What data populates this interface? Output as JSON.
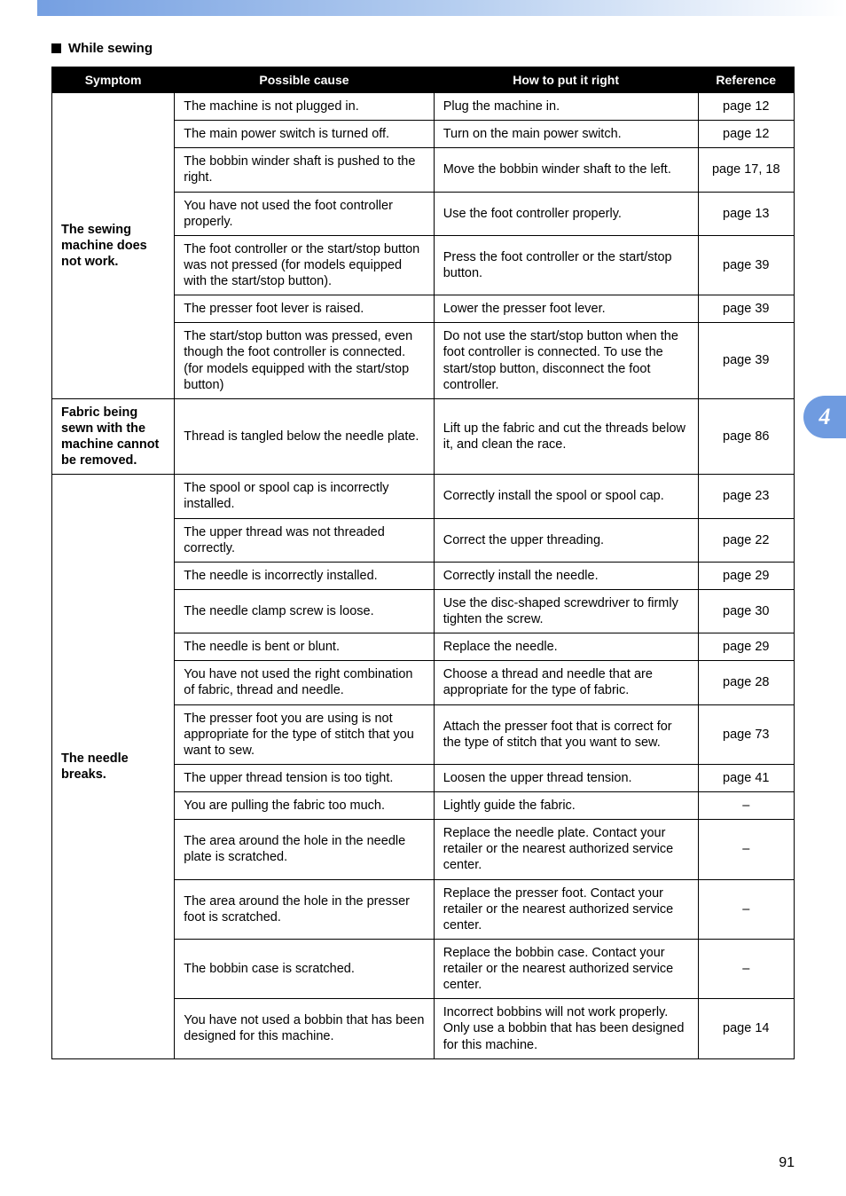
{
  "section_title": "While sewing",
  "chapter_tab": "4",
  "page_number": "91",
  "table": {
    "headers": [
      "Symptom",
      "Possible cause",
      "How to put it right",
      "Reference"
    ],
    "groups": [
      {
        "symptom": "The sewing machine does not work.",
        "rows": [
          {
            "cause": "The machine is not plugged in.",
            "fix": "Plug the machine in.",
            "ref": "page 12"
          },
          {
            "cause": "The main power switch is turned off.",
            "fix": "Turn on the main power switch.",
            "ref": "page 12"
          },
          {
            "cause": "The bobbin winder shaft is pushed to the right.",
            "fix": "Move the bobbin winder shaft to the left.",
            "ref": "page 17, 18"
          },
          {
            "cause": "You have not used the foot controller properly.",
            "fix": "Use the foot controller properly.",
            "ref": "page 13"
          },
          {
            "cause": "The foot controller or the start/stop button was not pressed (for models equipped with the start/stop button).",
            "fix": "Press the foot controller or the start/stop button.",
            "ref": "page 39"
          },
          {
            "cause": "The presser foot lever is raised.",
            "fix": "Lower the presser foot lever.",
            "ref": "page 39"
          },
          {
            "cause": "The start/stop button was pressed, even though the foot controller is connected. (for models equipped with the start/stop button)",
            "fix": "Do not use the start/stop button when the foot controller is connected. To use the start/stop button, disconnect the foot controller.",
            "ref": "page 39"
          }
        ]
      },
      {
        "symptom": "Fabric being sewn with the machine cannot be removed.",
        "rows": [
          {
            "cause": "Thread is tangled below the needle plate.",
            "fix": "Lift up the fabric and cut the threads below it, and clean the race.",
            "ref": "page 86"
          }
        ]
      },
      {
        "symptom": "The needle breaks.",
        "rows": [
          {
            "cause": "The spool or spool cap is incorrectly installed.",
            "fix": "Correctly install the spool or spool cap.",
            "ref": "page 23"
          },
          {
            "cause": "The upper thread was not threaded correctly.",
            "fix": "Correct the upper threading.",
            "ref": "page 22"
          },
          {
            "cause": "The needle is incorrectly installed.",
            "fix": "Correctly install the needle.",
            "ref": "page 29"
          },
          {
            "cause": "The needle clamp screw is loose.",
            "fix": "Use the disc-shaped screwdriver to firmly tighten the screw.",
            "ref": "page 30"
          },
          {
            "cause": "The needle is bent or blunt.",
            "fix": "Replace the needle.",
            "ref": "page 29"
          },
          {
            "cause": "You have not used the right combination of fabric, thread and needle.",
            "fix": "Choose a thread and needle that are appropriate for the type of fabric.",
            "ref": "page 28"
          },
          {
            "cause": "The presser foot you are using is not appropriate for the type of stitch that you want to sew.",
            "fix": "Attach the presser foot that is correct for the type of stitch that you want to sew.",
            "ref": "page 73"
          },
          {
            "cause": "The upper thread tension is too tight.",
            "fix": "Loosen the upper thread tension.",
            "ref": "page 41"
          },
          {
            "cause": "You are pulling the fabric too much.",
            "fix": "Lightly guide the fabric.",
            "ref": "–"
          },
          {
            "cause": "The area around the hole in the needle plate is scratched.",
            "fix": "Replace the needle plate.\nContact your retailer or the nearest authorized service center.",
            "ref": "–"
          },
          {
            "cause": "The area around the hole in the presser foot is scratched.",
            "fix": "Replace the presser foot.\nContact your retailer or the nearest authorized service center.",
            "ref": "–"
          },
          {
            "cause": "The bobbin case is scratched.",
            "fix": "Replace the bobbin case.\nContact your retailer or the nearest authorized service center.",
            "ref": "–"
          },
          {
            "cause": "You have not used a bobbin that has been designed for this machine.",
            "fix": "Incorrect bobbins will not work properly. Only use a bobbin that has been designed for this machine.",
            "ref": "page 14"
          }
        ]
      }
    ]
  }
}
